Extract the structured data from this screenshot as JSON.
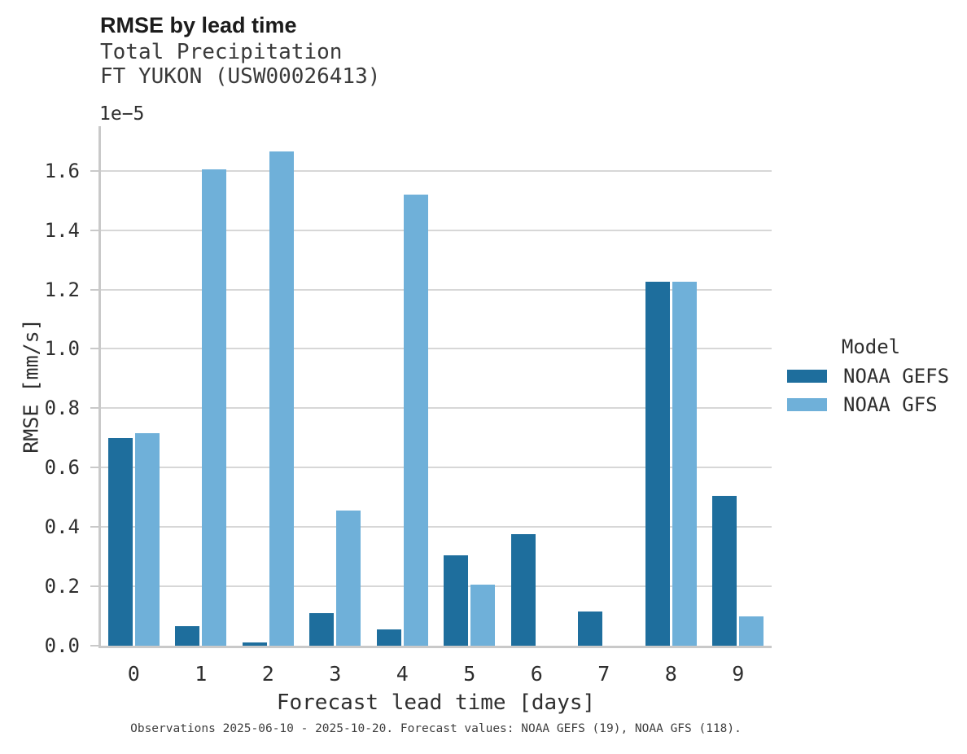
{
  "figure": {
    "title": "RMSE by lead time",
    "subtitle_line1": "Total Precipitation",
    "subtitle_line2": "FT YUKON (USW00026413)",
    "y_offset_label": "1e−5",
    "caption": "Observations 2025-06-10 - 2025-10-20. Forecast values: NOAA GEFS (19), NOAA GFS (118)."
  },
  "legend": {
    "title": "Model",
    "entries": [
      {
        "label": "NOAA GEFS",
        "color": "#1e6e9d"
      },
      {
        "label": "NOAA GFS",
        "color": "#6fb0d9"
      }
    ]
  },
  "chart_data": {
    "type": "bar",
    "title": "RMSE by lead time",
    "subtitle": [
      "Total Precipitation",
      "FT YUKON (USW00026413)"
    ],
    "xlabel": "Forecast lead time [days]",
    "ylabel": "RMSE [mm/s]",
    "y_scale_note": "1e−5",
    "value_units": "x1e-5 mm/s",
    "categories": [
      "0",
      "1",
      "2",
      "3",
      "4",
      "5",
      "6",
      "7",
      "8",
      "9"
    ],
    "series": [
      {
        "name": "NOAA GEFS",
        "color": "#1e6e9d",
        "values": [
          0.7,
          0.065,
          0.01,
          0.11,
          0.055,
          0.305,
          0.375,
          0.115,
          1.225,
          0.505
        ]
      },
      {
        "name": "NOAA GFS",
        "color": "#6fb0d9",
        "values": [
          0.715,
          1.605,
          1.665,
          0.455,
          1.52,
          0.205,
          0,
          0,
          1.225,
          0.1
        ]
      }
    ],
    "ylim": [
      0,
      1.75
    ],
    "yticks": [
      0,
      0.2,
      0.4,
      0.6,
      0.8,
      1.0,
      1.2,
      1.4,
      1.6
    ],
    "grid": "horizontal",
    "legend_title": "Model",
    "legend_position": "center-right-outside",
    "caption": "Observations 2025-06-10 - 2025-10-20. Forecast values: NOAA GEFS (19), NOAA GFS (118)."
  }
}
